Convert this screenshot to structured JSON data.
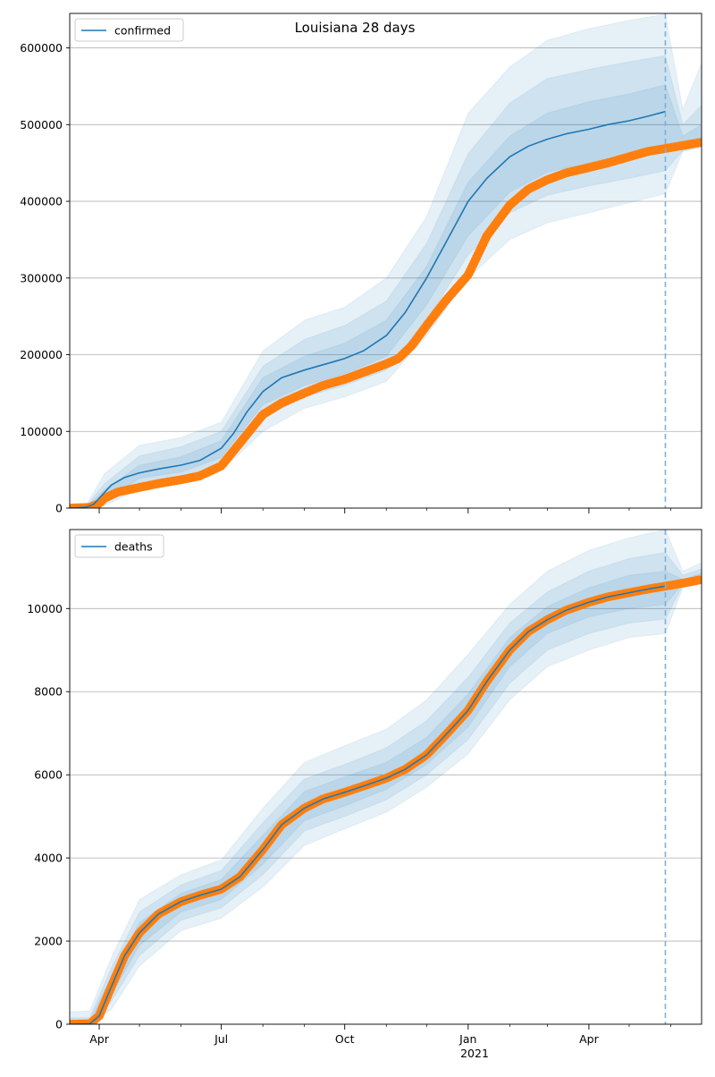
{
  "figure": {
    "title": "Louisiana 28 days"
  },
  "x_axis": {
    "range": [
      "2020-03-10",
      "2021-06-24"
    ],
    "major_ticks": [
      {
        "date": "2020-04-01",
        "label": "Apr"
      },
      {
        "date": "2020-07-01",
        "label": "Jul"
      },
      {
        "date": "2020-10-01",
        "label": "Oct"
      },
      {
        "date": "2021-01-01",
        "label": "Jan"
      },
      {
        "date": "2021-04-01",
        "label": "Apr"
      }
    ],
    "minor_ticks": [
      "2020-05-01",
      "2020-06-01",
      "2020-08-01",
      "2020-09-01",
      "2020-11-01",
      "2020-12-01",
      "2021-02-01",
      "2021-03-01",
      "2021-05-01",
      "2021-06-01"
    ],
    "secondary_label": "2021",
    "forecast_start": "2021-05-28"
  },
  "colors": {
    "model_line": "#1f77b4",
    "observed": "#ff7f0e",
    "band": "#1f77b4",
    "grid": "#b0b0b0",
    "vline": "#7fb0d8"
  },
  "chart_data": [
    {
      "type": "line",
      "legend": "confirmed",
      "legend_position": "upper-left",
      "grid": "horizontal",
      "ylim": [
        0,
        645000
      ],
      "yticks": [
        0,
        100000,
        200000,
        300000,
        400000,
        500000,
        600000
      ],
      "yticklabels": [
        "0",
        "100000",
        "200000",
        "300000",
        "400000",
        "500000",
        "600000"
      ],
      "model": {
        "x": [
          "2020-03-10",
          "2020-03-22",
          "2020-03-28",
          "2020-04-01",
          "2020-04-10",
          "2020-04-20",
          "2020-05-01",
          "2020-05-15",
          "2020-06-01",
          "2020-06-15",
          "2020-07-01",
          "2020-07-10",
          "2020-07-20",
          "2020-08-01",
          "2020-08-15",
          "2020-09-01",
          "2020-09-15",
          "2020-10-01",
          "2020-10-15",
          "2020-11-01",
          "2020-11-15",
          "2020-12-01",
          "2020-12-15",
          "2021-01-01",
          "2021-01-15",
          "2021-02-01",
          "2021-02-15",
          "2021-03-01",
          "2021-03-15",
          "2021-04-01",
          "2021-04-15",
          "2021-05-01",
          "2021-05-15",
          "2021-05-28"
        ],
        "y": [
          0,
          1000,
          5000,
          13000,
          30000,
          40000,
          46000,
          51000,
          56000,
          62000,
          78000,
          97000,
          125000,
          152000,
          170000,
          180000,
          187000,
          195000,
          205000,
          225000,
          255000,
          300000,
          345000,
          400000,
          430000,
          458000,
          472000,
          481000,
          488000,
          494000,
          500000,
          505000,
          511000,
          517000
        ]
      },
      "observed": {
        "x": [
          "2020-03-10",
          "2020-03-25",
          "2020-04-01",
          "2020-04-05",
          "2020-04-15",
          "2020-05-01",
          "2020-05-15",
          "2020-06-01",
          "2020-06-15",
          "2020-07-01",
          "2020-07-15",
          "2020-08-01",
          "2020-08-15",
          "2020-09-01",
          "2020-09-15",
          "2020-10-01",
          "2020-10-15",
          "2020-11-01",
          "2020-11-10",
          "2020-11-20",
          "2020-12-01",
          "2020-12-15",
          "2021-01-01",
          "2021-01-15",
          "2021-02-01",
          "2021-02-15",
          "2021-03-01",
          "2021-03-15",
          "2021-04-01",
          "2021-04-15",
          "2021-05-01",
          "2021-05-15",
          "2021-06-01",
          "2021-06-24"
        ],
        "y": [
          0,
          1000,
          6000,
          13000,
          21000,
          27000,
          32000,
          37000,
          42000,
          55000,
          85000,
          122000,
          137000,
          150000,
          160000,
          168000,
          177000,
          188000,
          195000,
          212000,
          238000,
          270000,
          304000,
          355000,
          395000,
          416000,
          428000,
          437000,
          444000,
          450000,
          458000,
          465000,
          470000,
          477000
        ]
      },
      "bands": [
        {
          "level": 1,
          "x": [
            "2020-03-22",
            "2020-04-05",
            "2020-05-01",
            "2020-06-01",
            "2020-07-01",
            "2020-08-01",
            "2020-09-01",
            "2020-10-01",
            "2020-11-01",
            "2020-12-01",
            "2021-01-01",
            "2021-02-01",
            "2021-03-01",
            "2021-04-01",
            "2021-05-01",
            "2021-05-28",
            "2021-06-10",
            "2021-06-24"
          ],
          "upper": [
            3000,
            45000,
            82000,
            92000,
            112000,
            205000,
            245000,
            262000,
            300000,
            380000,
            515000,
            575000,
            610000,
            625000,
            636000,
            644000,
            520000,
            580000
          ],
          "lower": [
            0,
            3000,
            25000,
            33000,
            48000,
            100000,
            130000,
            145000,
            165000,
            225000,
            300000,
            350000,
            372000,
            385000,
            398000,
            410000,
            465000,
            470000
          ]
        },
        {
          "level": 2,
          "x": [
            "2020-03-22",
            "2020-04-05",
            "2020-05-01",
            "2020-06-01",
            "2020-07-01",
            "2020-08-01",
            "2020-09-01",
            "2020-10-01",
            "2020-11-01",
            "2020-12-01",
            "2021-01-01",
            "2021-02-01",
            "2021-03-01",
            "2021-04-01",
            "2021-05-01",
            "2021-05-28",
            "2021-06-10",
            "2021-06-24"
          ],
          "upper": [
            2000,
            32000,
            68000,
            80000,
            100000,
            185000,
            220000,
            238000,
            270000,
            345000,
            462000,
            528000,
            560000,
            572000,
            582000,
            590000,
            500000,
            525000
          ],
          "lower": [
            0,
            6000,
            33000,
            40000,
            57000,
            118000,
            145000,
            160000,
            180000,
            245000,
            330000,
            385000,
            408000,
            420000,
            430000,
            440000,
            466000,
            472000
          ]
        },
        {
          "level": 3,
          "x": [
            "2020-03-22",
            "2020-04-05",
            "2020-05-01",
            "2020-06-01",
            "2020-07-01",
            "2020-08-01",
            "2020-09-01",
            "2020-10-01",
            "2020-11-01",
            "2020-12-01",
            "2021-01-01",
            "2021-02-01",
            "2021-03-01",
            "2021-04-01",
            "2021-05-01",
            "2021-05-28",
            "2021-06-10",
            "2021-06-24"
          ],
          "upper": [
            1000,
            24000,
            56000,
            67000,
            88000,
            170000,
            198000,
            215000,
            245000,
            315000,
            425000,
            485000,
            515000,
            530000,
            540000,
            552000,
            485000,
            500000
          ],
          "lower": [
            0,
            9000,
            39000,
            47000,
            66000,
            135000,
            160000,
            175000,
            198000,
            265000,
            355000,
            412000,
            438000,
            450000,
            462000,
            470000,
            468000,
            474000
          ]
        }
      ],
      "obs_extended": true
    },
    {
      "type": "line",
      "legend": "deaths",
      "legend_position": "upper-left",
      "grid": "horizontal",
      "ylim": [
        0,
        11900
      ],
      "yticks": [
        0,
        2000,
        4000,
        6000,
        8000,
        10000
      ],
      "yticklabels": [
        "0",
        "2000",
        "4000",
        "6000",
        "8000",
        "10000"
      ],
      "model": {
        "x": [
          "2020-03-10",
          "2020-03-25",
          "2020-04-01",
          "2020-04-10",
          "2020-04-20",
          "2020-05-01",
          "2020-05-15",
          "2020-06-01",
          "2020-06-15",
          "2020-07-01",
          "2020-07-15",
          "2020-08-01",
          "2020-08-15",
          "2020-09-01",
          "2020-09-15",
          "2020-10-01",
          "2020-10-15",
          "2020-11-01",
          "2020-11-15",
          "2020-12-01",
          "2020-12-15",
          "2021-01-01",
          "2021-01-15",
          "2021-02-01",
          "2021-02-15",
          "2021-03-01",
          "2021-03-15",
          "2021-04-01",
          "2021-04-15",
          "2021-05-01",
          "2021-05-15",
          "2021-05-28"
        ],
        "y": [
          0,
          10,
          200,
          900,
          1650,
          2200,
          2650,
          2950,
          3100,
          3250,
          3550,
          4200,
          4800,
          5200,
          5420,
          5580,
          5730,
          5920,
          6130,
          6480,
          6950,
          7550,
          8250,
          9000,
          9450,
          9730,
          9960,
          10150,
          10280,
          10380,
          10470,
          10540
        ]
      },
      "observed": {
        "x": [
          "2020-03-10",
          "2020-03-25",
          "2020-04-01",
          "2020-04-10",
          "2020-04-20",
          "2020-05-01",
          "2020-05-15",
          "2020-06-01",
          "2020-06-15",
          "2020-07-01",
          "2020-07-15",
          "2020-08-01",
          "2020-08-15",
          "2020-09-01",
          "2020-09-15",
          "2020-10-01",
          "2020-10-15",
          "2020-11-01",
          "2020-11-15",
          "2020-12-01",
          "2020-12-15",
          "2021-01-01",
          "2021-01-15",
          "2021-02-01",
          "2021-02-15",
          "2021-03-01",
          "2021-03-15",
          "2021-04-01",
          "2021-04-15",
          "2021-05-01",
          "2021-05-15",
          "2021-06-01",
          "2021-06-15",
          "2021-06-24"
        ],
        "y": [
          0,
          10,
          200,
          900,
          1650,
          2200,
          2650,
          2950,
          3100,
          3250,
          3550,
          4200,
          4800,
          5200,
          5420,
          5580,
          5730,
          5920,
          6130,
          6480,
          6950,
          7550,
          8250,
          9000,
          9450,
          9730,
          9960,
          10150,
          10280,
          10380,
          10470,
          10560,
          10640,
          10700
        ]
      },
      "bands": [
        {
          "level": 1,
          "x": [
            "2020-03-10",
            "2020-03-25",
            "2020-04-10",
            "2020-05-01",
            "2020-06-01",
            "2020-07-01",
            "2020-08-01",
            "2020-09-01",
            "2020-10-01",
            "2020-11-01",
            "2020-12-01",
            "2021-01-01",
            "2021-02-01",
            "2021-03-01",
            "2021-04-01",
            "2021-05-01",
            "2021-05-28",
            "2021-06-10",
            "2021-06-24"
          ],
          "upper": [
            300,
            320,
            1600,
            3000,
            3600,
            3950,
            5200,
            6300,
            6700,
            7100,
            7800,
            8900,
            10100,
            10900,
            11400,
            11700,
            11900,
            10900,
            11100
          ],
          "lower": [
            0,
            0,
            350,
            1400,
            2250,
            2550,
            3300,
            4300,
            4700,
            5100,
            5700,
            6500,
            7800,
            8600,
            9000,
            9300,
            9400,
            10500,
            10600
          ]
        },
        {
          "level": 2,
          "x": [
            "2020-03-10",
            "2020-03-25",
            "2020-04-10",
            "2020-05-01",
            "2020-06-01",
            "2020-07-01",
            "2020-08-01",
            "2020-09-01",
            "2020-10-01",
            "2020-11-01",
            "2020-12-01",
            "2021-01-01",
            "2021-02-01",
            "2021-03-01",
            "2021-04-01",
            "2021-05-01",
            "2021-05-28",
            "2021-06-10",
            "2021-06-24"
          ],
          "upper": [
            150,
            160,
            1350,
            2700,
            3350,
            3700,
            4850,
            5900,
            6250,
            6650,
            7300,
            8350,
            9650,
            10400,
            10900,
            11200,
            11350,
            10800,
            10950
          ],
          "lower": [
            0,
            0,
            550,
            1650,
            2500,
            2800,
            3600,
            4650,
            5000,
            5400,
            6000,
            6850,
            8200,
            9000,
            9400,
            9650,
            9750,
            10550,
            10650
          ]
        },
        {
          "level": 3,
          "x": [
            "2020-03-10",
            "2020-03-25",
            "2020-04-10",
            "2020-05-01",
            "2020-06-01",
            "2020-07-01",
            "2020-08-01",
            "2020-09-01",
            "2020-10-01",
            "2020-11-01",
            "2020-12-01",
            "2021-01-01",
            "2021-02-01",
            "2021-03-01",
            "2021-04-01",
            "2021-05-01",
            "2021-05-28",
            "2021-06-10",
            "2021-06-24"
          ],
          "upper": [
            60,
            70,
            1150,
            2450,
            3150,
            3480,
            4550,
            5600,
            5950,
            6300,
            6900,
            7950,
            9300,
            10050,
            10500,
            10800,
            10900,
            10700,
            10850
          ],
          "lower": [
            0,
            0,
            700,
            1900,
            2700,
            3000,
            3850,
            4900,
            5250,
            5650,
            6250,
            7150,
            8600,
            9400,
            9800,
            10000,
            10100,
            10600,
            10700
          ]
        }
      ],
      "obs_extended": true
    }
  ]
}
